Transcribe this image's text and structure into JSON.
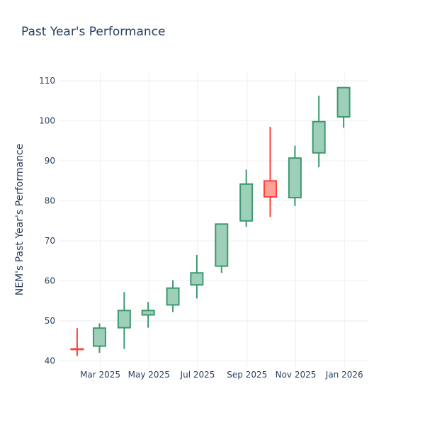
{
  "chart_data": {
    "type": "candlestick",
    "title": "Past Year's Performance",
    "ylabel": "NEM's Past Year's Performance",
    "xlabel": "",
    "ylim": [
      38.5,
      112.5
    ],
    "yticks": [
      40,
      50,
      60,
      70,
      80,
      90,
      100,
      110
    ],
    "xlim": [
      "2025-01-08",
      "2026-01-31"
    ],
    "xticks": [
      {
        "date": "2025-03-01",
        "label": "Mar 2025"
      },
      {
        "date": "2025-05-01",
        "label": "May 2025"
      },
      {
        "date": "2025-07-01",
        "label": "Jul 2025"
      },
      {
        "date": "2025-09-01",
        "label": "Sep 2025"
      },
      {
        "date": "2025-11-01",
        "label": "Nov 2025"
      },
      {
        "date": "2026-01-01",
        "label": "Jan 2026"
      }
    ],
    "grid": true,
    "colors": {
      "increasing": "#3d9970",
      "increasing_fill": "#9ecfb8",
      "decreasing": "#ff4136",
      "decreasing_fill": "#ffa09b"
    },
    "candles": [
      {
        "date": "2025-01-31",
        "open": 43.0,
        "high": 48.2,
        "low": 41.2,
        "close": 42.9
      },
      {
        "date": "2025-02-28",
        "open": 43.7,
        "high": 49.4,
        "low": 42.0,
        "close": 48.2
      },
      {
        "date": "2025-03-31",
        "open": 48.3,
        "high": 57.2,
        "low": 43.0,
        "close": 52.6
      },
      {
        "date": "2025-04-30",
        "open": 51.5,
        "high": 54.7,
        "low": 48.3,
        "close": 52.6
      },
      {
        "date": "2025-05-31",
        "open": 54.0,
        "high": 60.2,
        "low": 52.2,
        "close": 58.2
      },
      {
        "date": "2025-06-30",
        "open": 59.0,
        "high": 66.5,
        "low": 55.6,
        "close": 62.0
      },
      {
        "date": "2025-07-31",
        "open": 63.7,
        "high": 74.3,
        "low": 62.0,
        "close": 74.2
      },
      {
        "date": "2025-08-31",
        "open": 75.0,
        "high": 87.8,
        "low": 73.5,
        "close": 84.2
      },
      {
        "date": "2025-09-30",
        "open": 85.0,
        "high": 98.5,
        "low": 76.0,
        "close": 81.0
      },
      {
        "date": "2025-10-31",
        "open": 80.8,
        "high": 93.8,
        "low": 78.7,
        "close": 90.7
      },
      {
        "date": "2025-11-30",
        "open": 92.0,
        "high": 106.3,
        "low": 88.4,
        "close": 99.8
      },
      {
        "date": "2025-12-31",
        "open": 101.0,
        "high": 108.5,
        "low": 98.3,
        "close": 108.3
      }
    ]
  }
}
